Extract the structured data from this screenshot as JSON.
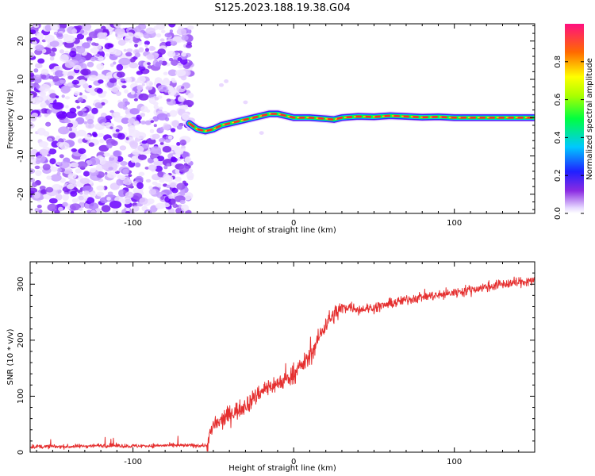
{
  "title": "S125.2023.188.19.38.G04",
  "chart_data": [
    {
      "type": "heatmap",
      "xlabel": "Height of straight line (km)",
      "ylabel": "Frequency (Hz)",
      "xlim": [
        -164,
        150
      ],
      "ylim": [
        -25,
        24.5
      ],
      "xticks": [
        -100,
        0,
        100
      ],
      "yticks": [
        -20,
        -10,
        0,
        10,
        20
      ],
      "noise_region_x": [
        -164,
        -65
      ],
      "signal_line": {
        "x": [
          -65,
          -60,
          -55,
          -50,
          -45,
          -40,
          -35,
          -30,
          -25,
          -20,
          -15,
          -10,
          -5,
          0,
          10,
          20,
          25,
          30,
          40,
          50,
          60,
          70,
          80,
          90,
          100,
          110,
          120,
          130,
          140,
          150
        ],
        "y": [
          -1.5,
          -3.0,
          -3.5,
          -3.0,
          -2.0,
          -1.5,
          -1.0,
          -0.5,
          0.0,
          0.5,
          1.0,
          1.0,
          0.5,
          0.0,
          0.0,
          -0.3,
          -0.5,
          0.0,
          0.3,
          0.2,
          0.5,
          0.3,
          0.1,
          0.2,
          0.0,
          0.0,
          0.0,
          0.0,
          0.0,
          0.0
        ]
      },
      "colorbar": {
        "label": "Normalized spectral amplitude",
        "ticks": [
          "0.0",
          "0.2",
          "0.4",
          "0.6",
          "0.8"
        ],
        "range": [
          0,
          1
        ]
      },
      "grid": false
    },
    {
      "type": "line",
      "xlabel": "Height of straight line (km)",
      "ylabel": "SNR (10 * v/v)",
      "xlim": [
        -164,
        150
      ],
      "ylim": [
        0,
        340
      ],
      "xticks": [
        -100,
        0,
        100
      ],
      "yticks": [
        0,
        100,
        200,
        300
      ],
      "series": [
        {
          "color": "#e53030",
          "x": [
            -164,
            -140,
            -120,
            -100,
            -80,
            -60,
            -54,
            -50,
            -45,
            -40,
            -35,
            -30,
            -25,
            -20,
            -15,
            -10,
            -5,
            0,
            5,
            10,
            15,
            20,
            25,
            30,
            35,
            40,
            50,
            60,
            70,
            80,
            90,
            100,
            110,
            120,
            130,
            140,
            150
          ],
          "y": [
            10,
            10,
            12,
            11,
            12,
            12,
            12,
            48,
            55,
            68,
            75,
            85,
            95,
            110,
            118,
            122,
            130,
            140,
            155,
            170,
            200,
            230,
            245,
            258,
            260,
            255,
            258,
            265,
            272,
            278,
            280,
            285,
            290,
            295,
            300,
            303,
            308
          ]
        }
      ],
      "grid": false
    }
  ]
}
